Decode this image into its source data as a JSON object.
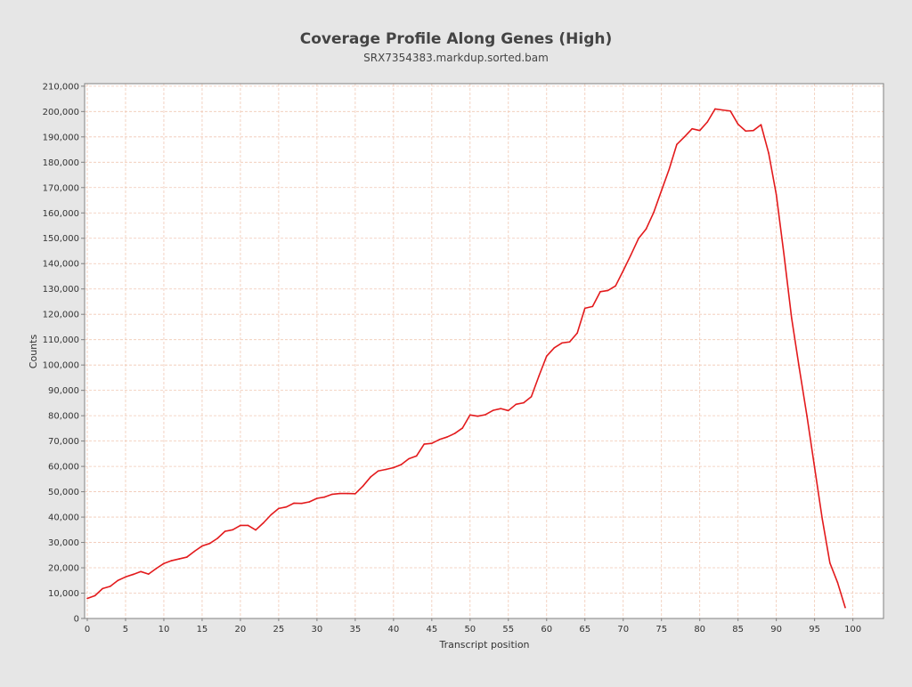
{
  "chart_data": {
    "type": "line",
    "title": "Coverage Profile Along Genes (High)",
    "subtitle": "SRX7354383.markdup.sorted.bam",
    "xlabel": "Transcript position",
    "ylabel": "Counts",
    "xlim": [
      0,
      104
    ],
    "ylim": [
      0,
      211000
    ],
    "x_ticks": [
      0,
      5,
      10,
      15,
      20,
      25,
      30,
      35,
      40,
      45,
      50,
      55,
      60,
      65,
      70,
      75,
      80,
      85,
      90,
      95,
      100
    ],
    "x_tick_labels": [
      "0",
      "5",
      "10",
      "15",
      "20",
      "25",
      "30",
      "35",
      "40",
      "45",
      "50",
      "55",
      "60",
      "65",
      "70",
      "75",
      "80",
      "85",
      "90",
      "95",
      "100"
    ],
    "y_ticks": [
      0,
      10000,
      20000,
      30000,
      40000,
      50000,
      60000,
      70000,
      80000,
      90000,
      100000,
      110000,
      120000,
      130000,
      140000,
      150000,
      160000,
      170000,
      180000,
      190000,
      200000,
      210000
    ],
    "y_tick_labels": [
      "0",
      "10,000",
      "20,000",
      "30,000",
      "40,000",
      "50,000",
      "60,000",
      "70,000",
      "80,000",
      "90,000",
      "100,000",
      "110,000",
      "120,000",
      "130,000",
      "140,000",
      "150,000",
      "160,000",
      "170,000",
      "180,000",
      "190,000",
      "200,000",
      "210,000"
    ],
    "grid": true,
    "series": [
      {
        "color": "#e31a1c",
        "x": [
          0,
          1,
          2,
          3,
          4,
          5,
          6,
          7,
          8,
          9,
          10,
          11,
          12,
          13,
          14,
          15,
          16,
          17,
          18,
          19,
          20,
          21,
          22,
          23,
          24,
          25,
          26,
          27,
          28,
          29,
          30,
          31,
          32,
          33,
          34,
          35,
          36,
          37,
          38,
          39,
          40,
          41,
          42,
          43,
          44,
          45,
          46,
          47,
          48,
          49,
          50,
          51,
          52,
          53,
          54,
          55,
          56,
          57,
          58,
          59,
          60,
          61,
          62,
          63,
          64,
          65,
          66,
          67,
          68,
          69,
          70,
          71,
          72,
          73,
          74,
          75,
          76,
          77,
          78,
          79,
          80,
          81,
          82,
          83,
          84,
          85,
          86,
          87,
          88,
          89,
          90,
          91,
          92,
          93,
          94,
          95,
          96,
          97,
          98,
          99
        ],
        "values": [
          7900,
          9000,
          11800,
          12700,
          15000,
          16400,
          17400,
          18500,
          17500,
          19700,
          21700,
          22800,
          23500,
          24200,
          26500,
          28600,
          29600,
          31600,
          34400,
          35000,
          36700,
          36700,
          34900,
          37700,
          40900,
          43400,
          44000,
          45500,
          45400,
          46000,
          47400,
          47900,
          49000,
          49300,
          49300,
          49200,
          52200,
          55800,
          58200,
          58800,
          59500,
          60700,
          63000,
          64100,
          68800,
          69100,
          70600,
          71600,
          73000,
          75100,
          80300,
          79800,
          80400,
          82100,
          82800,
          82000,
          84500,
          85100,
          87500,
          95700,
          103500,
          106800,
          108700,
          109100,
          112600,
          122400,
          123100,
          128900,
          129400,
          131200,
          137200,
          143400,
          149900,
          153700,
          160300,
          168800,
          177200,
          187000,
          190000,
          193200,
          192500,
          195900,
          201000,
          200600,
          200200,
          195000,
          192300,
          192500,
          194800,
          183600,
          167200,
          143600,
          118500,
          98800,
          79900,
          59600,
          39300,
          21900,
          14200,
          4300
        ]
      }
    ]
  },
  "colors": {
    "background": "#e6e6e6",
    "plot_background": "#ffffff",
    "grid": "#f0c8b4",
    "line": "#e31a1c",
    "axis": "#808080",
    "title": "#444444"
  }
}
